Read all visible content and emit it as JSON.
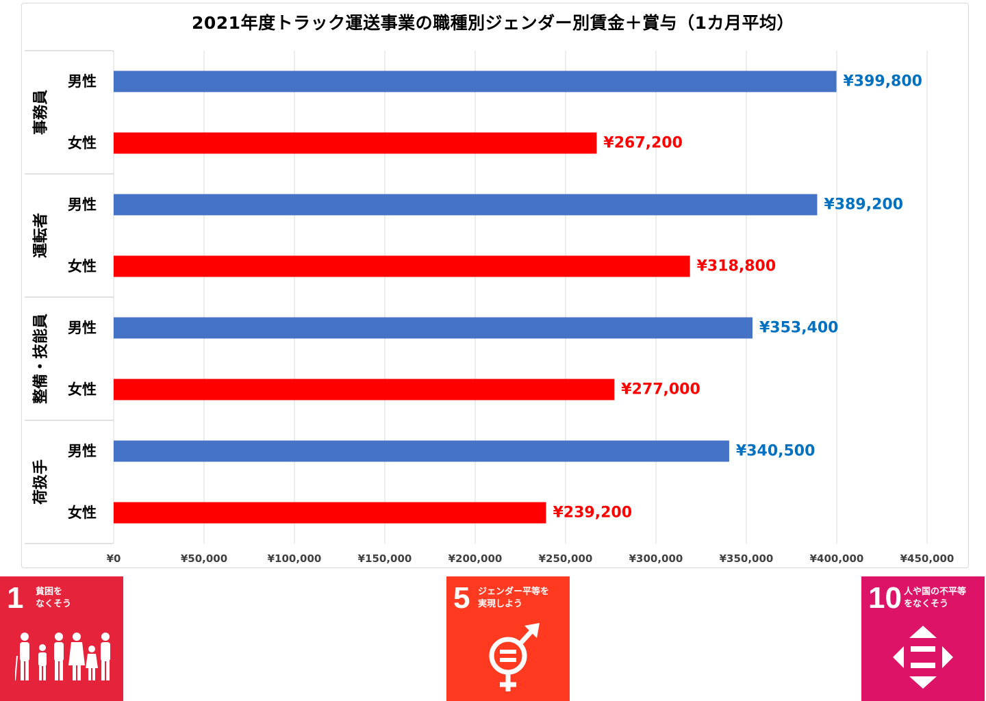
{
  "chart_data": {
    "type": "bar",
    "orientation": "horizontal",
    "title": "2021年度トラック運送事業の職種別ジェンダー別賃金＋賞与（1カ月平均）",
    "xlim": [
      0,
      450000
    ],
    "x_ticks": [
      "¥0",
      "¥50,000",
      "¥100,000",
      "¥150,000",
      "¥200,000",
      "¥250,000",
      "¥300,000",
      "¥350,000",
      "¥400,000",
      "¥450,000"
    ],
    "grid": true,
    "groups": [
      {
        "name": "事務員",
        "bars": [
          {
            "label": "男性",
            "value": 399800,
            "data_label": "¥399,800",
            "color": "#4472c4",
            "label_color": "#0070c0"
          },
          {
            "label": "女性",
            "value": 267200,
            "data_label": "¥267,200",
            "color": "#ff0000",
            "label_color": "#ff0000"
          }
        ]
      },
      {
        "name": "運転者",
        "bars": [
          {
            "label": "男性",
            "value": 389200,
            "data_label": "¥389,200",
            "color": "#4472c4",
            "label_color": "#0070c0"
          },
          {
            "label": "女性",
            "value": 318800,
            "data_label": "¥318,800",
            "color": "#ff0000",
            "label_color": "#ff0000"
          }
        ]
      },
      {
        "name": "整備・技能員",
        "bars": [
          {
            "label": "男性",
            "value": 353400,
            "data_label": "¥353,400",
            "color": "#4472c4",
            "label_color": "#0070c0"
          },
          {
            "label": "女性",
            "value": 277000,
            "data_label": "¥277,000",
            "color": "#ff0000",
            "label_color": "#ff0000"
          }
        ]
      },
      {
        "name": "荷扱手",
        "bars": [
          {
            "label": "男性",
            "value": 340500,
            "data_label": "¥340,500",
            "color": "#4472c4",
            "label_color": "#0070c0"
          },
          {
            "label": "女性",
            "value": 239200,
            "data_label": "¥239,200",
            "color": "#ff0000",
            "label_color": "#ff0000"
          }
        ]
      }
    ]
  },
  "sdg_icons": [
    {
      "number": "1",
      "text": "貧困を\nなくそう",
      "color": "#e5243b",
      "icon": "family-icon"
    },
    {
      "number": "5",
      "text": "ジェンダー平等を\n実現しよう",
      "color": "#ff3a21",
      "icon": "gender-equality-icon"
    },
    {
      "number": "10",
      "text": "人や国の不平等\nをなくそう",
      "color": "#dd1367",
      "icon": "reduced-inequality-icon"
    }
  ]
}
